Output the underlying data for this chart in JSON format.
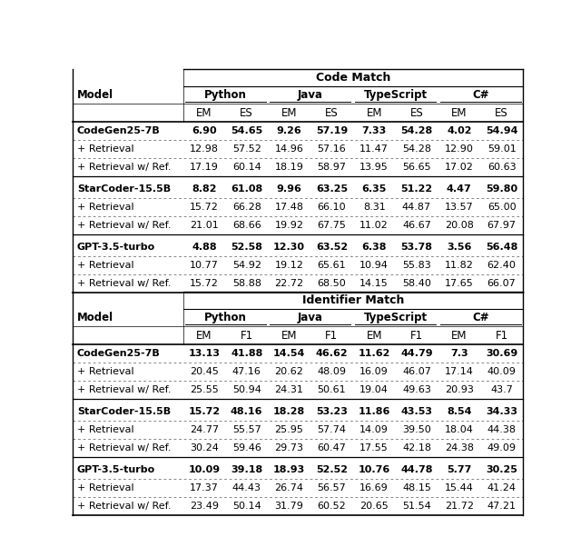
{
  "title1": "Code Match",
  "title2": "Identifier Match",
  "code_match_rows": [
    [
      "CodeGen25-7B",
      "6.90",
      "54.65",
      "9.26",
      "57.19",
      "7.33",
      "54.28",
      "4.02",
      "54.94"
    ],
    [
      "+ Retrieval",
      "12.98",
      "57.52",
      "14.96",
      "57.16",
      "11.47",
      "54.28",
      "12.90",
      "59.01"
    ],
    [
      "+ Retrieval w/ Ref.",
      "17.19",
      "60.14",
      "18.19",
      "58.97",
      "13.95",
      "56.65",
      "17.02",
      "60.63"
    ],
    [
      "StarCoder-15.5B",
      "8.82",
      "61.08",
      "9.96",
      "63.25",
      "6.35",
      "51.22",
      "4.47",
      "59.80"
    ],
    [
      "+ Retrieval",
      "15.72",
      "66.28",
      "17.48",
      "66.10",
      "8.31",
      "44.87",
      "13.57",
      "65.00"
    ],
    [
      "+ Retrieval w/ Ref.",
      "21.01",
      "68.66",
      "19.92",
      "67.75",
      "11.02",
      "46.67",
      "20.08",
      "67.97"
    ],
    [
      "GPT-3.5-turbo",
      "4.88",
      "52.58",
      "12.30",
      "63.52",
      "6.38",
      "53.78",
      "3.56",
      "56.48"
    ],
    [
      "+ Retrieval",
      "10.77",
      "54.92",
      "19.12",
      "65.61",
      "10.94",
      "55.83",
      "11.82",
      "62.40"
    ],
    [
      "+ Retrieval w/ Ref.",
      "15.72",
      "58.88",
      "22.72",
      "68.50",
      "14.15",
      "58.40",
      "17.65",
      "66.07"
    ]
  ],
  "identifier_match_rows": [
    [
      "CodeGen25-7B",
      "13.13",
      "41.88",
      "14.54",
      "46.62",
      "11.62",
      "44.79",
      "7.3",
      "30.69"
    ],
    [
      "+ Retrieval",
      "20.45",
      "47.16",
      "20.62",
      "48.09",
      "16.09",
      "46.07",
      "17.14",
      "40.09"
    ],
    [
      "+ Retrieval w/ Ref.",
      "25.55",
      "50.94",
      "24.31",
      "50.61",
      "19.04",
      "49.63",
      "20.93",
      "43.7"
    ],
    [
      "StarCoder-15.5B",
      "15.72",
      "48.16",
      "18.28",
      "53.23",
      "11.86",
      "43.53",
      "8.54",
      "34.33"
    ],
    [
      "+ Retrieval",
      "24.77",
      "55.57",
      "25.95",
      "57.74",
      "14.09",
      "39.50",
      "18.04",
      "44.38"
    ],
    [
      "+ Retrieval w/ Ref.",
      "30.24",
      "59.46",
      "29.73",
      "60.47",
      "17.55",
      "42.18",
      "24.38",
      "49.09"
    ],
    [
      "GPT-3.5-turbo",
      "10.09",
      "39.18",
      "18.93",
      "52.52",
      "10.76",
      "44.78",
      "5.77",
      "30.25"
    ],
    [
      "+ Retrieval",
      "17.37",
      "44.43",
      "26.74",
      "56.57",
      "16.69",
      "48.15",
      "15.44",
      "41.24"
    ],
    [
      "+ Retrieval w/ Ref.",
      "23.49",
      "50.14",
      "31.79",
      "60.52",
      "20.65",
      "51.54",
      "21.72",
      "47.21"
    ]
  ],
  "bold_rows": [
    0,
    3,
    6
  ],
  "group_sep_rows": [
    3,
    6
  ],
  "lang_labels": [
    "Python",
    "Java",
    "TypeScript",
    "C#"
  ],
  "model_col_label": "Model",
  "col2_cm": "ES",
  "col2_im": "F1"
}
